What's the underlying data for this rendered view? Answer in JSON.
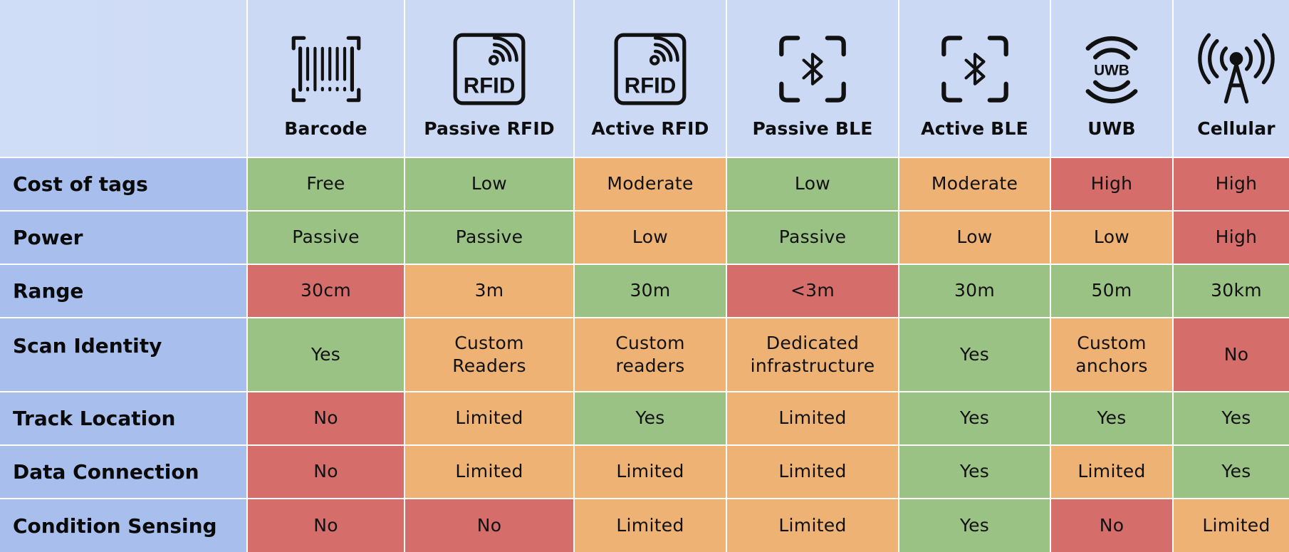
{
  "chart_data": {
    "type": "table",
    "title": "",
    "columns": [
      {
        "key": "barcode",
        "label": "Barcode",
        "icon": "barcode-icon"
      },
      {
        "key": "passive_rfid",
        "label": "Passive RFID",
        "icon": "rfid-icon"
      },
      {
        "key": "active_rfid",
        "label": "Active RFID",
        "icon": "rfid-icon"
      },
      {
        "key": "passive_ble",
        "label": "Passive BLE",
        "icon": "bluetooth-icon"
      },
      {
        "key": "active_ble",
        "label": "Active BLE",
        "icon": "bluetooth-icon"
      },
      {
        "key": "uwb",
        "label": "UWB",
        "icon": "uwb-icon"
      },
      {
        "key": "cellular",
        "label": "Cellular",
        "icon": "cell-tower-icon"
      }
    ],
    "rows": [
      {
        "label": "Cost of tags",
        "cells": [
          {
            "text": "Free",
            "rating": "good"
          },
          {
            "text": "Low",
            "rating": "good"
          },
          {
            "text": "Moderate",
            "rating": "medium"
          },
          {
            "text": "Low",
            "rating": "good"
          },
          {
            "text": "Moderate",
            "rating": "medium"
          },
          {
            "text": "High",
            "rating": "bad"
          },
          {
            "text": "High",
            "rating": "bad"
          }
        ]
      },
      {
        "label": "Power",
        "cells": [
          {
            "text": "Passive",
            "rating": "good"
          },
          {
            "text": "Passive",
            "rating": "good"
          },
          {
            "text": "Low",
            "rating": "medium"
          },
          {
            "text": "Passive",
            "rating": "good"
          },
          {
            "text": "Low",
            "rating": "medium"
          },
          {
            "text": "Low",
            "rating": "medium"
          },
          {
            "text": "High",
            "rating": "bad"
          }
        ]
      },
      {
        "label": "Range",
        "cells": [
          {
            "text": "30cm",
            "rating": "bad"
          },
          {
            "text": "3m",
            "rating": "medium"
          },
          {
            "text": "30m",
            "rating": "good"
          },
          {
            "text": "<3m",
            "rating": "bad"
          },
          {
            "text": "30m",
            "rating": "good"
          },
          {
            "text": "50m",
            "rating": "good"
          },
          {
            "text": "30km",
            "rating": "good"
          }
        ]
      },
      {
        "label": "Scan Identity",
        "cells": [
          {
            "text": "Yes",
            "rating": "good"
          },
          {
            "text": "Custom\nReaders",
            "rating": "medium"
          },
          {
            "text": "Custom\nreaders",
            "rating": "medium"
          },
          {
            "text": "Dedicated\ninfrastructure",
            "rating": "medium"
          },
          {
            "text": "Yes",
            "rating": "good"
          },
          {
            "text": "Custom\nanchors",
            "rating": "medium"
          },
          {
            "text": "No",
            "rating": "bad"
          }
        ]
      },
      {
        "label": "Track Location",
        "cells": [
          {
            "text": "No",
            "rating": "bad"
          },
          {
            "text": "Limited",
            "rating": "medium"
          },
          {
            "text": "Yes",
            "rating": "good"
          },
          {
            "text": "Limited",
            "rating": "medium"
          },
          {
            "text": "Yes",
            "rating": "good"
          },
          {
            "text": "Yes",
            "rating": "good"
          },
          {
            "text": "Yes",
            "rating": "good"
          }
        ]
      },
      {
        "label": "Data Connection",
        "cells": [
          {
            "text": "No",
            "rating": "bad"
          },
          {
            "text": "Limited",
            "rating": "medium"
          },
          {
            "text": "Limited",
            "rating": "medium"
          },
          {
            "text": "Limited",
            "rating": "medium"
          },
          {
            "text": "Yes",
            "rating": "good"
          },
          {
            "text": "Limited",
            "rating": "medium"
          },
          {
            "text": "Yes",
            "rating": "good"
          }
        ]
      },
      {
        "label": "Condition Sensing",
        "cells": [
          {
            "text": "No",
            "rating": "bad"
          },
          {
            "text": "No",
            "rating": "bad"
          },
          {
            "text": "Limited",
            "rating": "medium"
          },
          {
            "text": "Limited",
            "rating": "medium"
          },
          {
            "text": "Yes",
            "rating": "good"
          },
          {
            "text": "No",
            "rating": "bad"
          },
          {
            "text": "Limited",
            "rating": "medium"
          }
        ]
      }
    ],
    "colors": {
      "good": "#9bc285",
      "medium": "#edb274",
      "bad": "#d56d6a",
      "header_bg": "#cbd9f5",
      "row_label_bg": "#a8bfee"
    }
  }
}
